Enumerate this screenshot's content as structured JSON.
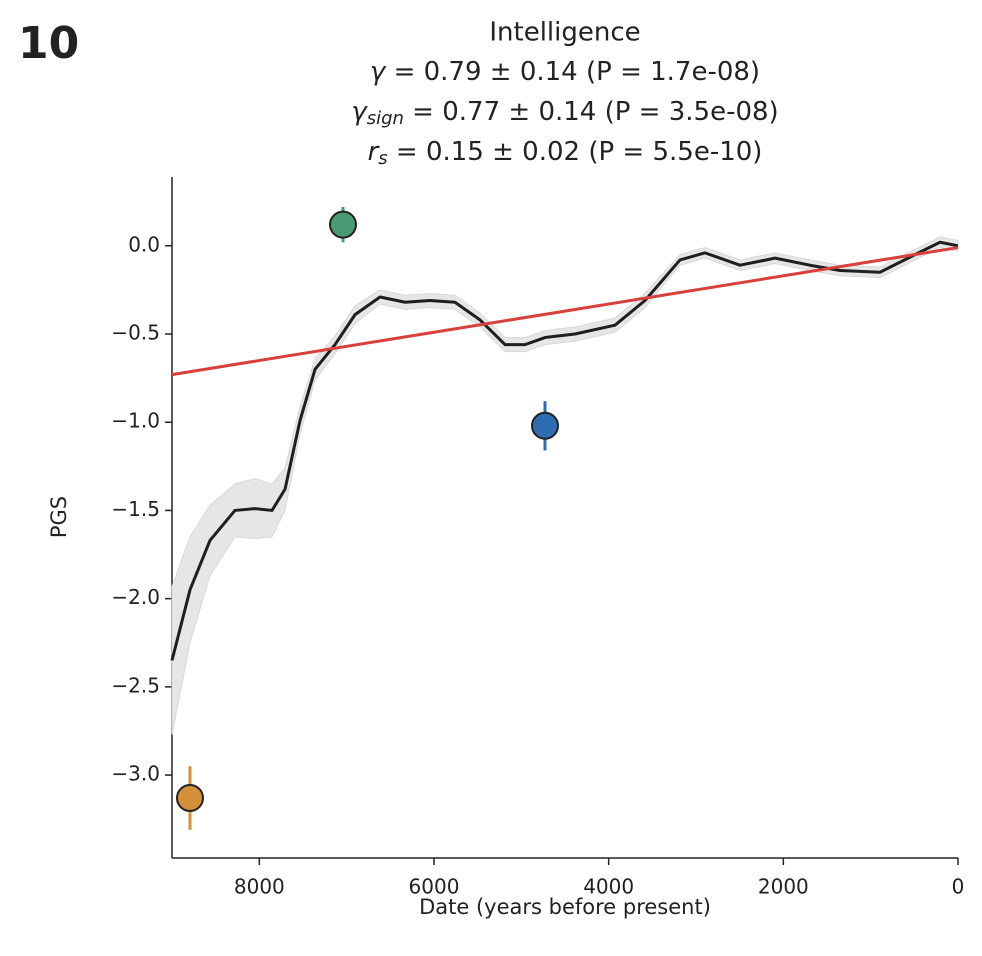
{
  "chart_data": {
    "type": "line",
    "panel_label": "10",
    "title": "Intelligence",
    "stats": [
      {
        "symbol": "γ",
        "text": " = 0.79 ± 0.14 (P = 1.7e-08)"
      },
      {
        "symbol": "γ",
        "subscript": "sign",
        "text": " = 0.77 ± 0.14 (P = 3.5e-08)"
      },
      {
        "symbol": "r",
        "subscript": "s",
        "text": " = 0.15 ± 0.02 (P = 5.5e-10)"
      }
    ],
    "xlabel": "Date (years before present)",
    "ylabel": "PGS",
    "xlim": [
      9000,
      0
    ],
    "ylim": [
      -3.47,
      0.39
    ],
    "xticks": [
      8000,
      6000,
      4000,
      2000,
      0
    ],
    "yticks": [
      {
        "value": 0,
        "label": "0.0"
      },
      {
        "value": -0.5,
        "label": "−0.5"
      },
      {
        "value": -1,
        "label": "−1.0"
      },
      {
        "value": -1.5,
        "label": "−1.5"
      },
      {
        "value": -2,
        "label": "−2.0"
      },
      {
        "value": -2.5,
        "label": "−2.5"
      },
      {
        "value": -3,
        "label": "−3.0"
      }
    ],
    "trend": {
      "color": "#1f1f1f",
      "band_color": "#e6e6e6",
      "x": [
        9000,
        8794,
        8565,
        8279,
        8050,
        7855,
        7706,
        7534,
        7362,
        7133,
        6904,
        6618,
        6332,
        6046,
        5760,
        5473,
        5187,
        4958,
        4729,
        4386,
        3928,
        3584,
        3183,
        2897,
        2496,
        2095,
        1695,
        1351,
        893,
        492,
        206,
        0
      ],
      "values": [
        -2.35,
        -1.95,
        -1.67,
        -1.5,
        -1.49,
        -1.5,
        -1.38,
        -0.99,
        -0.7,
        -0.56,
        -0.39,
        -0.29,
        -0.32,
        -0.31,
        -0.32,
        -0.42,
        -0.56,
        -0.56,
        -0.52,
        -0.5,
        -0.45,
        -0.31,
        -0.08,
        -0.04,
        -0.11,
        -0.07,
        -0.11,
        -0.14,
        -0.15,
        -0.05,
        0.02,
        0
      ],
      "upper": [
        -1.93,
        -1.65,
        -1.47,
        -1.35,
        -1.32,
        -1.35,
        -1.26,
        -0.91,
        -0.64,
        -0.51,
        -0.34,
        -0.25,
        -0.28,
        -0.27,
        -0.28,
        -0.38,
        -0.52,
        -0.52,
        -0.48,
        -0.46,
        -0.41,
        -0.27,
        -0.05,
        -0.01,
        -0.08,
        -0.04,
        -0.08,
        -0.11,
        -0.12,
        -0.02,
        0.05,
        0.03
      ],
      "lower": [
        -2.77,
        -2.25,
        -1.87,
        -1.65,
        -1.66,
        -1.65,
        -1.5,
        -1.07,
        -0.76,
        -0.61,
        -0.44,
        -0.33,
        -0.36,
        -0.35,
        -0.36,
        -0.46,
        -0.6,
        -0.6,
        -0.56,
        -0.54,
        -0.49,
        -0.35,
        -0.11,
        -0.07,
        -0.14,
        -0.1,
        -0.14,
        -0.17,
        -0.18,
        -0.08,
        -0.01,
        -0.03
      ]
    },
    "regression": {
      "color": "#d8403a",
      "x": [
        9000,
        0
      ],
      "values": [
        -0.73,
        -0.01
      ]
    },
    "points": {
      "x": [
        7042,
        4729,
        8794
      ],
      "values": [
        0.12,
        -1.02,
        -3.13
      ],
      "errors": [
        0.1,
        0.14,
        0.18
      ],
      "colors": [
        "#4c9a74",
        "#2f6db3",
        "#d4913a"
      ]
    }
  }
}
